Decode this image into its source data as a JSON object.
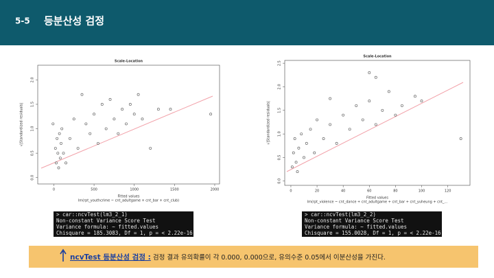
{
  "header": {
    "number": "5-5",
    "title": "등분산성 검정"
  },
  "chart_data": [
    {
      "type": "scatter",
      "title": "Scale-Location",
      "x_label": "Fitted values",
      "subtitle": "lm(rpt_youthcrime ~ cnt_adultgame + cnt_bar + cnt_club)",
      "y_label": "√|Standardized residuals|",
      "color": "#666666",
      "x": [
        20,
        30,
        40,
        50,
        60,
        70,
        80,
        90,
        100,
        120,
        150,
        200,
        250,
        300,
        400,
        450,
        500,
        550,
        600,
        650,
        700,
        750,
        800,
        850,
        900,
        950,
        1000,
        1050,
        1100,
        1200,
        1300,
        1450,
        1950,
        -10,
        350
      ],
      "values": [
        0.6,
        0.3,
        0.8,
        0.5,
        0.2,
        0.9,
        0.4,
        0.7,
        1.0,
        0.5,
        0.3,
        0.8,
        1.2,
        0.6,
        1.1,
        0.9,
        1.3,
        0.7,
        1.5,
        1.0,
        1.6,
        1.2,
        0.9,
        1.4,
        1.1,
        1.5,
        1.3,
        1.7,
        1.2,
        0.6,
        1.4,
        1.4,
        1.3,
        1.1,
        1.7
      ],
      "xlim": [
        -200,
        2060
      ],
      "ylim": [
        -0.13,
        2.3
      ],
      "xticks": [
        0,
        500,
        1000,
        1500,
        2000
      ],
      "yticks": [
        {
          "value": 0,
          "label": "0.0"
        },
        {
          "value": 0.5,
          "label": "0.5"
        },
        {
          "value": 1,
          "label": "1.0"
        },
        {
          "value": 1.5,
          "label": "1.5"
        },
        {
          "value": 2,
          "label": "2.0"
        }
      ]
    },
    {
      "type": "scatter",
      "title": "Scale-Location",
      "x_label": "Fitted values",
      "subtitle": "lm(rpt_violence ~ cnt_dance + cnt_adultgame + cnt_bar + cnt_yuheung + cnt_...",
      "y_label": "√|Standardized residuals|",
      "color": "#666666",
      "x": [
        1,
        2,
        3,
        4,
        5,
        6,
        8,
        10,
        12,
        15,
        18,
        20,
        25,
        30,
        35,
        40,
        45,
        50,
        55,
        60,
        65,
        70,
        75,
        80,
        85,
        95,
        100,
        130,
        30,
        60,
        65
      ],
      "values": [
        0.3,
        0.6,
        0.9,
        0.4,
        0.2,
        0.7,
        1.0,
        0.5,
        0.8,
        1.1,
        0.6,
        1.3,
        0.9,
        1.2,
        0.8,
        1.4,
        1.1,
        1.6,
        1.3,
        1.7,
        1.2,
        1.5,
        1.9,
        1.4,
        1.6,
        1.8,
        1.7,
        0.9,
        1.75,
        2.3,
        2.2
      ],
      "xlim": [
        -4.7,
        137
      ],
      "ylim": [
        -0.09,
        2.56
      ],
      "xticks": [
        0,
        20,
        40,
        60,
        80,
        100,
        120
      ],
      "yticks": [
        {
          "value": 0,
          "label": "0.0"
        },
        {
          "value": 0.5,
          "label": "0.5"
        },
        {
          "value": 1,
          "label": "1.0"
        },
        {
          "value": 1.5,
          "label": "1.5"
        },
        {
          "value": 2,
          "label": "2.0"
        },
        {
          "value": 2.5,
          "label": "2.5"
        }
      ]
    }
  ],
  "consoles": [
    {
      "lines": [
        "> car::ncvTest(lm3_2_1)",
        "Non-constant Variance Score Test",
        "Variance formula: ~ fitted.values",
        "Chisquare = 185.3083, Df = 1, p = < 2.22e-16"
      ]
    },
    {
      "lines": [
        "> car::ncvTest(lm3_2_2)",
        "Non-constant Variance Score Test",
        "Variance formula: ~ fitted.values",
        "Chisquare = 155.0028, Df = 1, p = < 2.22e-16"
      ]
    }
  ],
  "footer": {
    "label": "ncvTest 등분산성 검정 :",
    "text": " 검정 결과 유의확률이 각 0.000, 0.000으로, 유의수준 0.05에서 이분산성을 가진다."
  }
}
